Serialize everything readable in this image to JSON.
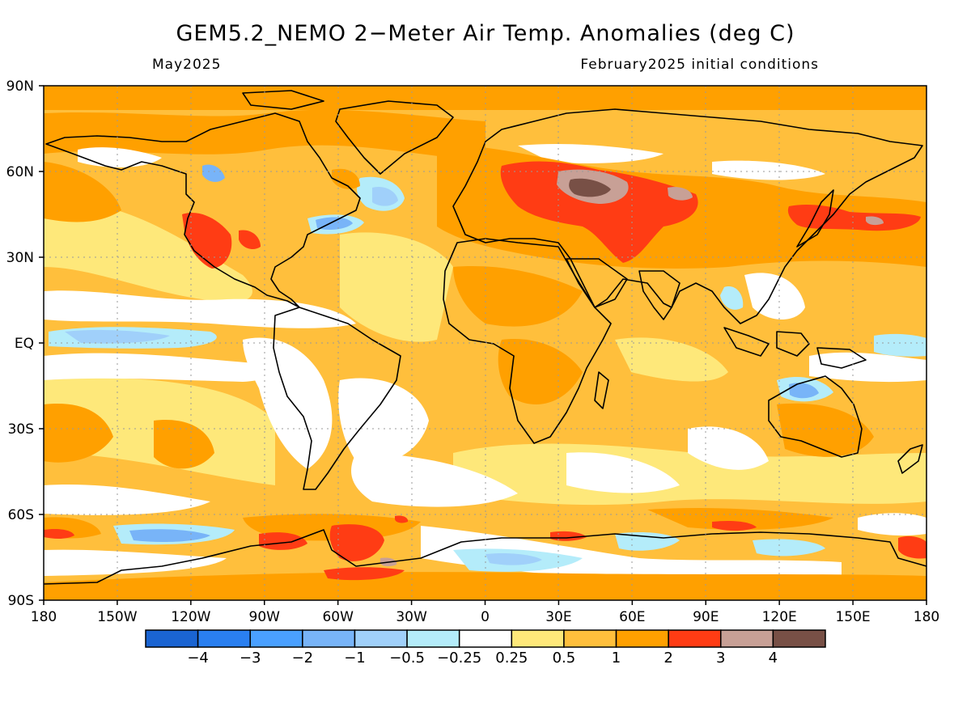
{
  "title": "GEM5.2_NEMO 2−Meter Air Temp. Anomalies (deg C)",
  "subtitle_left": "May2025",
  "subtitle_right": "February2025 initial conditions",
  "axes": {
    "lon_labels": [
      "180",
      "150W",
      "120W",
      "90W",
      "60W",
      "30W",
      "0",
      "30E",
      "60E",
      "90E",
      "120E",
      "150E",
      "180"
    ],
    "lat_labels": [
      "90N",
      "60N",
      "30N",
      "EQ",
      "30S",
      "60S",
      "90S"
    ]
  },
  "colorbar": {
    "colors": [
      "#1a64d2",
      "#2a7ff0",
      "#4aa0ff",
      "#78b4f8",
      "#a0d0fa",
      "#b4ecfa",
      "#ffffff",
      "#fee87a",
      "#ffbf3c",
      "#ffa000",
      "#ff3c14",
      "#c8a096",
      "#785046"
    ],
    "labels": [
      "−4",
      "−3",
      "−2",
      "−1",
      "−0.5",
      "−0.25",
      "0.25",
      "0.5",
      "1",
      "2",
      "3",
      "4"
    ]
  }
}
